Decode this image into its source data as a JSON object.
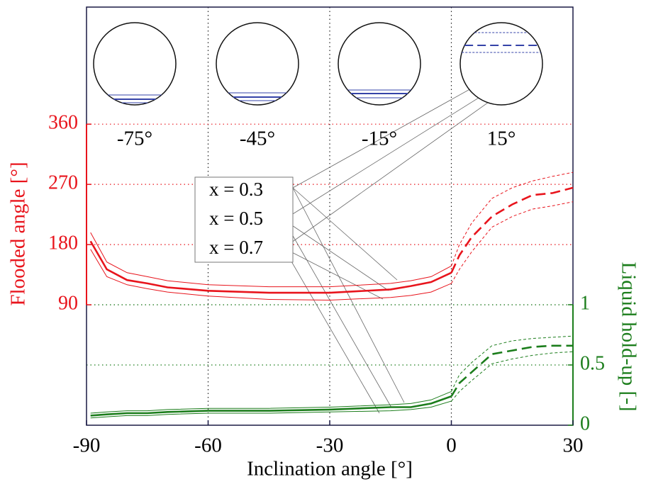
{
  "chart_data": {
    "type": "line",
    "xlabel": "Inclination angle [°]",
    "ylabel": "Flooded angle [°]",
    "y2label": "Liquid hold-up [-]",
    "x": [
      -89,
      -85,
      -80,
      -75,
      -70,
      -60,
      -45,
      -30,
      -15,
      -10,
      -5,
      0,
      2,
      5,
      10,
      15,
      20,
      25,
      30
    ],
    "xlim": [
      -90,
      30
    ],
    "xticks": [
      -90,
      -60,
      -30,
      0,
      30
    ],
    "ylim": [
      -90,
      535
    ],
    "yticks": [
      90,
      180,
      270,
      360
    ],
    "y2lim": [
      0,
      3.47
    ],
    "y2ticks": [
      0,
      0.5,
      1
    ],
    "grid": true,
    "series": [
      {
        "color": "#e8141c",
        "linewidth": 1,
        "values": [
          198,
          154,
          138,
          132,
          126,
          120,
          117,
          117,
          122,
          126,
          132,
          148,
          180,
          212,
          249,
          265,
          275,
          282,
          288
        ]
      },
      {
        "color": "#e8141c",
        "linewidth": 2.6,
        "values": [
          185,
          143,
          127,
          122,
          116,
          111,
          108,
          108,
          113,
          118,
          124,
          138,
          164,
          191,
          222,
          240,
          254,
          257,
          265
        ]
      },
      {
        "color": "#e8141c",
        "linewidth": 1,
        "values": [
          173,
          132,
          120,
          114,
          109,
          103,
          98,
          97,
          101,
          104,
          109,
          122,
          143,
          169,
          206,
          222,
          233,
          238,
          244
        ]
      },
      {
        "color": "#1b7d1b",
        "linewidth": 1,
        "axis": "y2",
        "values": [
          0.1,
          0.11,
          0.12,
          0.12,
          0.13,
          0.14,
          0.14,
          0.15,
          0.17,
          0.18,
          0.21,
          0.28,
          0.42,
          0.52,
          0.66,
          0.7,
          0.72,
          0.73,
          0.74
        ]
      },
      {
        "color": "#1b7d1b",
        "linewidth": 2.6,
        "axis": "y2",
        "values": [
          0.08,
          0.09,
          0.1,
          0.1,
          0.11,
          0.12,
          0.12,
          0.13,
          0.15,
          0.15,
          0.18,
          0.24,
          0.35,
          0.44,
          0.59,
          0.62,
          0.65,
          0.66,
          0.66
        ]
      },
      {
        "color": "#1b7d1b",
        "linewidth": 1,
        "axis": "y2",
        "values": [
          0.06,
          0.07,
          0.08,
          0.08,
          0.09,
          0.1,
          0.1,
          0.11,
          0.12,
          0.13,
          0.15,
          0.2,
          0.28,
          0.37,
          0.51,
          0.55,
          0.58,
          0.6,
          0.61
        ]
      }
    ],
    "insets": [
      "-75°",
      "-45°",
      "-15°",
      "15°"
    ],
    "annotations": [
      "x = 0.3",
      "x = 0.5",
      "x = 0.7"
    ]
  }
}
